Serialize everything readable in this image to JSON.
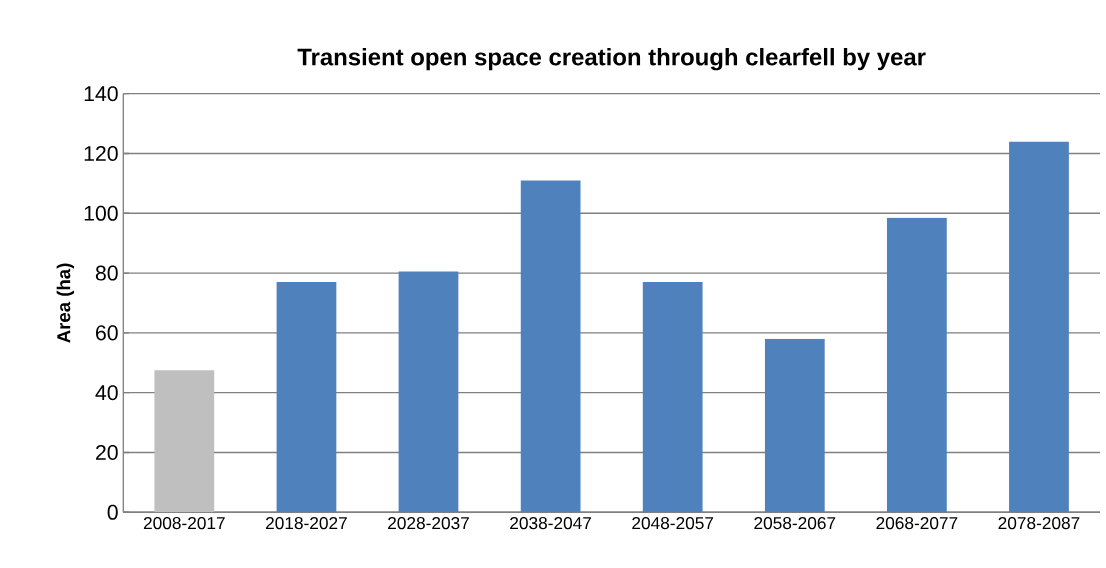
{
  "chart_data": {
    "type": "bar",
    "title": "Transient open space creation through clearfell by year",
    "ylabel": "Area (ha)",
    "categories": [
      "2008-2017",
      "2018-2027",
      "2028-2037",
      "2038-2047",
      "2048-2057",
      "2058-2067",
      "2068-2077",
      "2078-2087"
    ],
    "values": [
      47.5,
      77,
      80.5,
      111,
      77,
      58,
      98.5,
      124
    ],
    "colors": [
      "#bfbfbf",
      "#4f81bd",
      "#4f81bd",
      "#4f81bd",
      "#4f81bd",
      "#4f81bd",
      "#4f81bd",
      "#4f81bd"
    ],
    "ylim": [
      0,
      140
    ],
    "yticks": [
      0,
      20,
      40,
      60,
      80,
      100,
      120,
      140
    ],
    "grid": "y"
  }
}
